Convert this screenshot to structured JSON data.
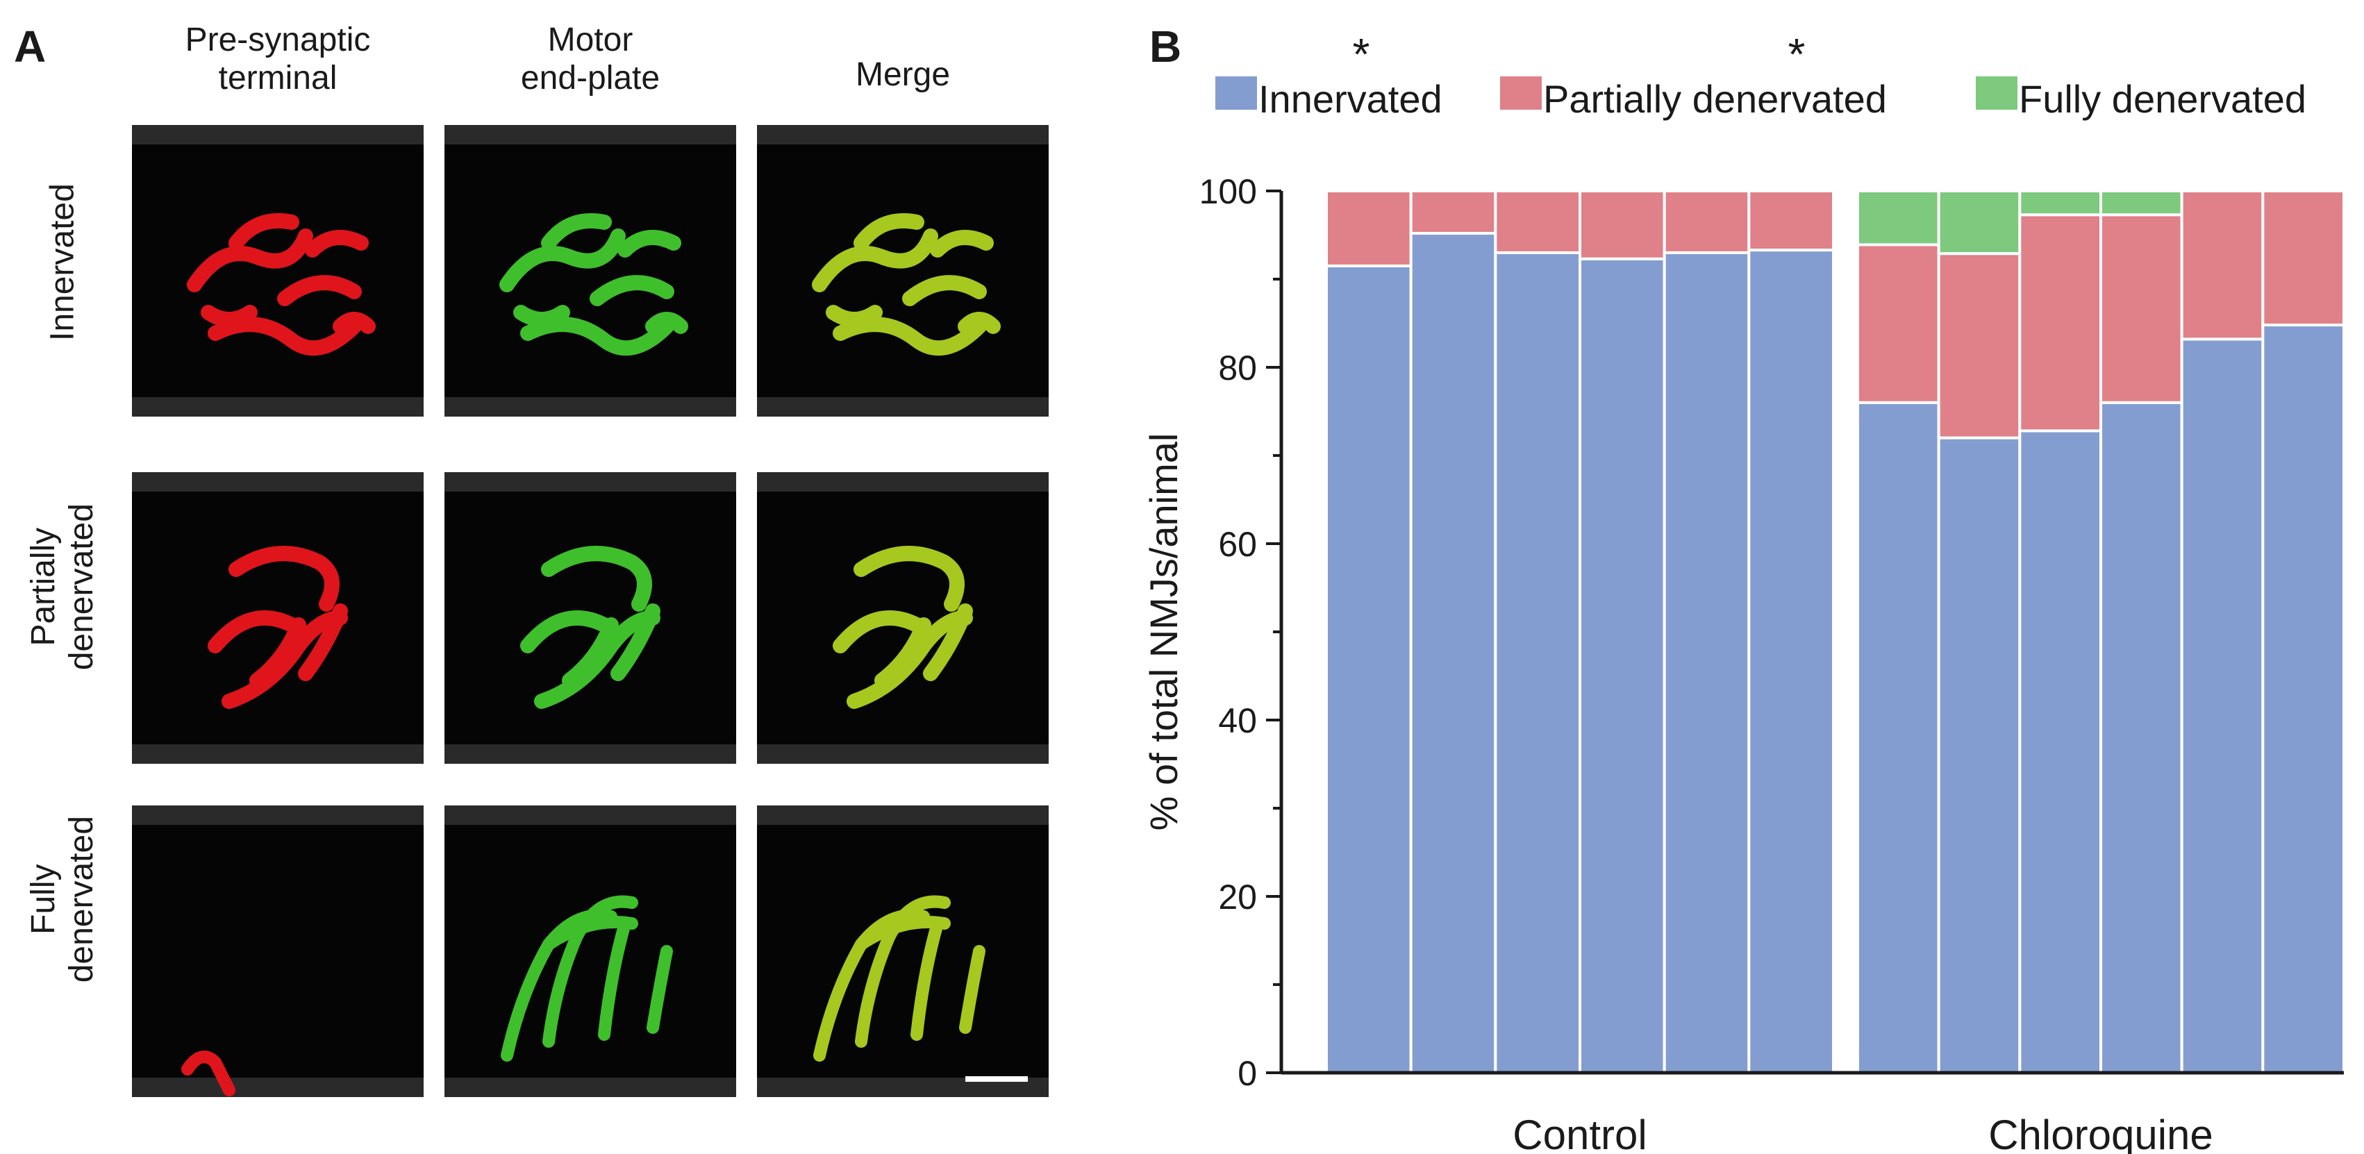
{
  "panel_a": {
    "letter": "A",
    "columns": [
      "Pre-synaptic\nterminal",
      "Motor\nend-plate",
      "Merge"
    ],
    "rows": [
      "Innervated",
      "Partially\ndenervated",
      "Fully\ndenervated"
    ],
    "colors": {
      "presynaptic": "#e0151b",
      "endplate": "#3fbf2c",
      "merge": "#a6c81f"
    }
  },
  "panel_b": {
    "letter": "B"
  },
  "chart_data": {
    "type": "bar",
    "stacked": true,
    "ylabel": "% of total NMJs/animal",
    "ylim": [
      0,
      100
    ],
    "yticks": [
      0,
      20,
      40,
      60,
      80,
      100
    ],
    "groups": [
      {
        "label": "Control",
        "bars": 6
      },
      {
        "label": "Chloroquine",
        "bars": 6
      }
    ],
    "series": [
      {
        "name": "Innervated",
        "color": "#849dd1",
        "values": [
          91.5,
          95.2,
          93.0,
          92.3,
          93.0,
          93.3,
          76.0,
          72.0,
          72.8,
          76.0,
          83.2,
          84.8
        ]
      },
      {
        "name": "Partially denervated",
        "color": "#e08089",
        "values": [
          8.5,
          4.8,
          7.0,
          7.7,
          7.0,
          6.7,
          17.9,
          20.9,
          24.5,
          21.3,
          16.8,
          15.2
        ]
      },
      {
        "name": "Fully denervated",
        "color": "#7dc97d",
        "values": [
          0,
          0,
          0,
          0,
          0,
          0,
          6.1,
          7.1,
          2.7,
          2.7,
          0,
          0
        ]
      }
    ],
    "legend_position": "top",
    "significance_markers": [
      "*",
      "*"
    ]
  }
}
